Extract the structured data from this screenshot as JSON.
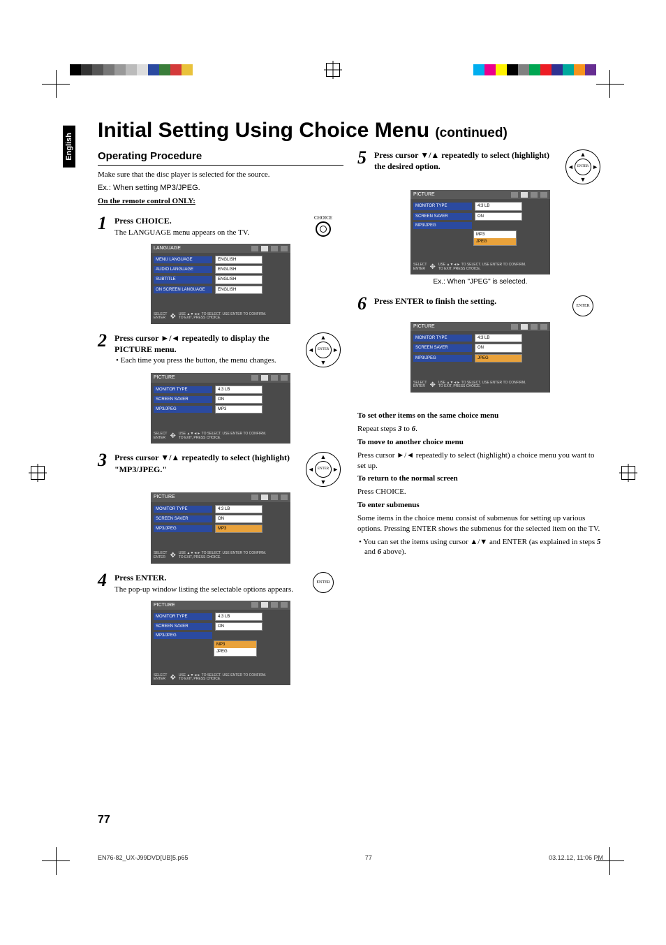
{
  "printer_marks": {
    "left_bar_colors": [
      "#000000",
      "#333333",
      "#555555",
      "#777777",
      "#999999",
      "#bbbbbb",
      "#dddddd",
      "#2b4aa0",
      "#3a7d3a",
      "#d43a3a",
      "#e9c23b"
    ],
    "right_bar_colors": [
      "#00aeef",
      "#ec008c",
      "#fff200",
      "#000000",
      "#808080",
      "#00a651",
      "#ed1c24",
      "#2e3192",
      "#00a99d",
      "#f7941d",
      "#662d91"
    ]
  },
  "side_tab": "English",
  "title_main": "Initial Setting Using Choice Menu ",
  "title_cont": "(continued)",
  "operating_heading": "Operating Procedure",
  "intro1": "Make sure that the disc player is selected for the source.",
  "intro2": "Ex.: When setting MP3/JPEG.",
  "intro3": "On the remote control ONLY:",
  "choice_label": "CHOICE",
  "enter_label": "ENTER",
  "steps": {
    "s1": {
      "num": "1",
      "lead": "Press CHOICE.",
      "sub": "The LANGUAGE menu appears on the TV."
    },
    "s2": {
      "num": "2",
      "lead": "Press cursor ►/◄ repeatedly to display the PICTURE menu.",
      "bullet": "• Each time you press the button, the menu changes."
    },
    "s3": {
      "num": "3",
      "lead": "Press cursor ▼/▲ repeatedly to select (highlight) \"MP3/JPEG.\""
    },
    "s4": {
      "num": "4",
      "lead": "Press ENTER.",
      "sub": "The pop-up window listing the selectable options appears."
    },
    "s5": {
      "num": "5",
      "lead": "Press cursor ▼/▲ repeatedly to select (highlight) the desired option."
    },
    "s6": {
      "num": "6",
      "lead": "Press ENTER to finish the setting."
    }
  },
  "menus": {
    "foot_select": "SELECT",
    "foot_enter": "ENTER",
    "foot_use": "USE ▲▼◄► TO SELECT.  USE ENTER TO CONFIRM.",
    "foot_exit": "TO EXIT, PRESS CHOICE.",
    "language": {
      "title": "LANGUAGE",
      "rows": [
        {
          "label": "MENU LANGUAGE",
          "value": "ENGLISH"
        },
        {
          "label": "AUDIO LANGUAGE",
          "value": "ENGLISH"
        },
        {
          "label": "SUBTITLE",
          "value": "ENGLISH"
        },
        {
          "label": "ON SCREEN LANGUAGE",
          "value": "ENGLISH"
        }
      ]
    },
    "picture_plain": {
      "title": "PICTURE",
      "rows": [
        {
          "label": "MONITOR TYPE",
          "value": "4:3 LB"
        },
        {
          "label": "SCREEN SAVER",
          "value": "ON"
        },
        {
          "label": "MP3/JPEG",
          "value": "MP3"
        }
      ]
    },
    "picture_hl": {
      "title": "PICTURE",
      "rows": [
        {
          "label": "MONITOR TYPE",
          "value": "4:3 LB"
        },
        {
          "label": "SCREEN SAVER",
          "value": "ON"
        },
        {
          "label": "MP3/JPEG",
          "value": "MP3",
          "sel": true
        }
      ]
    },
    "picture_popup": {
      "title": "PICTURE",
      "rows": [
        {
          "label": "MONITOR TYPE",
          "value": "4:3 LB"
        },
        {
          "label": "SCREEN SAVER",
          "value": "ON"
        },
        {
          "label": "MP3/JPEG"
        }
      ],
      "popup": [
        {
          "t": "MP3",
          "hl": true
        },
        {
          "t": "JPEG"
        }
      ]
    },
    "picture_popup_jpeg": {
      "title": "PICTURE",
      "rows": [
        {
          "label": "MONITOR TYPE",
          "value": "4:3 LB"
        },
        {
          "label": "SCREEN SAVER",
          "value": "ON"
        },
        {
          "label": "MP3/JPEG"
        }
      ],
      "popup": [
        {
          "t": "MP3"
        },
        {
          "t": "JPEG",
          "hl": true
        }
      ]
    },
    "picture_jpeg_note": "Ex.: When \"JPEG\" is selected.",
    "picture_final": {
      "title": "PICTURE",
      "rows": [
        {
          "label": "MONITOR TYPE",
          "value": "4:3 LB"
        },
        {
          "label": "SCREEN SAVER",
          "value": "ON"
        },
        {
          "label": "MP3/JPEG",
          "value": "JPEG",
          "sel": true
        }
      ]
    }
  },
  "after": {
    "h1": "To set other items on the same choice menu",
    "t1a": "Repeat steps ",
    "t1b": "3",
    "t1c": " to ",
    "t1d": "6",
    "t1e": ".",
    "h2": "To move to another choice menu",
    "t2": "Press cursor ►/◄ repeatedly to select (highlight) a choice menu you want to set up.",
    "h3": "To return to the normal screen",
    "t3": "Press CHOICE.",
    "h4": "To enter submenus",
    "t4": "Some items in the choice menu consist of submenus for setting up various options. Pressing ENTER shows the submenus for the selected item on the TV.",
    "b1a": "• You can set the items using cursor ▲/▼ and ENTER (as explained in steps ",
    "b1b": "5",
    "b1c": " and ",
    "b1d": "6",
    "b1e": " above)."
  },
  "page_number": "77",
  "footer": {
    "file": "EN76-82_UX-J99DVD[UB]5.p65",
    "page": "77",
    "date": "03.12.12, 11:06 PM"
  }
}
